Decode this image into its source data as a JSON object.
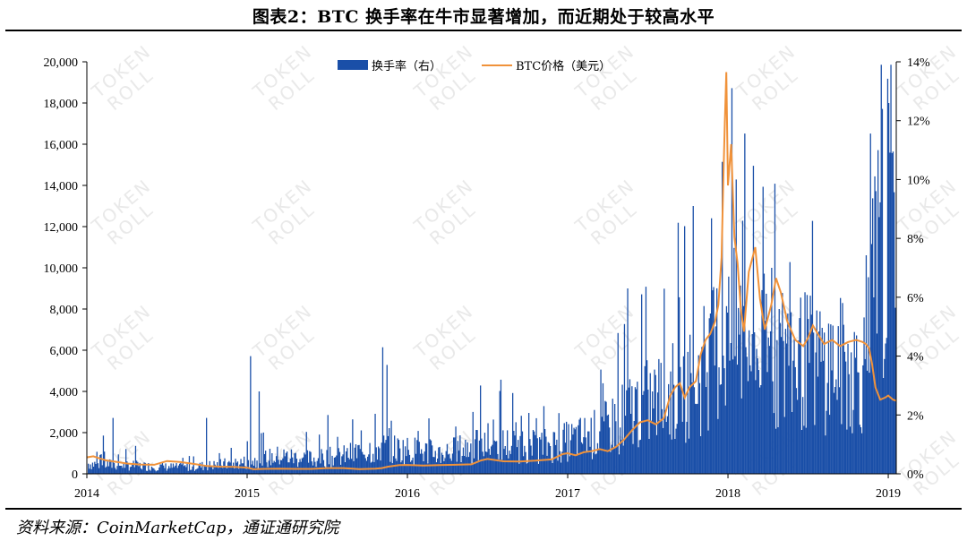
{
  "title": "图表2：BTC 换手率在牛市显著增加，而近期处于较高水平",
  "source": "资料来源：CoinMarketCap，通证通研究院",
  "watermark": {
    "line1": "TOKEN",
    "line2": "ROLL"
  },
  "chart_data": {
    "type": "bar+line",
    "legend": [
      {
        "key": "turnover",
        "label": "换手率（右）",
        "color": "#1a4fa8"
      },
      {
        "key": "price",
        "label": "BTC价格（美元）",
        "color": "#f0923a"
      }
    ],
    "legend_position": "top-center",
    "grid": false,
    "left_axis": {
      "range": [
        0,
        20000
      ],
      "ticks": [
        "0",
        "2,000",
        "4,000",
        "6,000",
        "8,000",
        "10,000",
        "12,000",
        "14,000",
        "16,000",
        "18,000",
        "20,000"
      ],
      "tick_values": [
        0,
        2000,
        4000,
        6000,
        8000,
        10000,
        12000,
        14000,
        16000,
        18000,
        20000
      ]
    },
    "right_axis": {
      "range": [
        0,
        14
      ],
      "ticks": [
        "0%",
        "2%",
        "4%",
        "6%",
        "8%",
        "10%",
        "12%",
        "14%"
      ],
      "tick_values": [
        0,
        2,
        4,
        6,
        8,
        10,
        12,
        14
      ]
    },
    "x_axis": {
      "range": [
        2014.0,
        2019.05
      ],
      "ticks": [
        "2014",
        "2015",
        "2016",
        "2017",
        "2018",
        "2019"
      ],
      "tick_values": [
        2014,
        2015,
        2016,
        2017,
        2018,
        2019
      ]
    },
    "price_series": {
      "name": "BTC价格（美元）",
      "x": [
        2014.0,
        2014.04,
        2014.08,
        2014.12,
        2014.17,
        2014.25,
        2014.33,
        2014.42,
        2014.5,
        2014.58,
        2014.67,
        2014.75,
        2014.83,
        2014.92,
        2015.0,
        2015.04,
        2015.1,
        2015.2,
        2015.3,
        2015.4,
        2015.5,
        2015.6,
        2015.7,
        2015.8,
        2015.84,
        2015.88,
        2015.95,
        2016.0,
        2016.1,
        2016.2,
        2016.3,
        2016.4,
        2016.46,
        2016.5,
        2016.6,
        2016.7,
        2016.8,
        2016.9,
        2016.97,
        2017.0,
        2017.05,
        2017.1,
        2017.15,
        2017.2,
        2017.25,
        2017.3,
        2017.35,
        2017.4,
        2017.45,
        2017.5,
        2017.55,
        2017.6,
        2017.64,
        2017.67,
        2017.7,
        2017.73,
        2017.76,
        2017.8,
        2017.83,
        2017.86,
        2017.89,
        2017.92,
        2017.94,
        2017.96,
        2017.97,
        2017.98,
        2017.99,
        2018.0,
        2018.02,
        2018.04,
        2018.06,
        2018.08,
        2018.1,
        2018.13,
        2018.17,
        2018.2,
        2018.23,
        2018.27,
        2018.3,
        2018.33,
        2018.37,
        2018.42,
        2018.47,
        2018.5,
        2018.53,
        2018.56,
        2018.6,
        2018.65,
        2018.7,
        2018.75,
        2018.8,
        2018.84,
        2018.86,
        2018.88,
        2018.9,
        2018.92,
        2018.95,
        2018.98,
        2019.0,
        2019.03,
        2019.05
      ],
      "y": [
        800,
        850,
        750,
        650,
        600,
        500,
        450,
        440,
        620,
        580,
        480,
        380,
        350,
        340,
        300,
        220,
        240,
        250,
        240,
        240,
        280,
        280,
        230,
        250,
        280,
        350,
        420,
        430,
        400,
        420,
        440,
        460,
        650,
        720,
        610,
        600,
        640,
        700,
        960,
        1000,
        900,
        1050,
        1100,
        1200,
        1100,
        1300,
        1650,
        2100,
        2500,
        2600,
        2400,
        2700,
        3800,
        4200,
        4400,
        3700,
        4200,
        4500,
        5800,
        6500,
        6800,
        7400,
        8200,
        10500,
        14000,
        17000,
        19500,
        14000,
        16000,
        11500,
        10200,
        8000,
        6900,
        9800,
        11000,
        8500,
        7000,
        8200,
        9500,
        8800,
        7400,
        6500,
        6200,
        6600,
        7200,
        6800,
        6300,
        6500,
        6200,
        6400,
        6500,
        6400,
        6300,
        6100,
        5300,
        4200,
        3600,
        3700,
        3800,
        3600,
        3550
      ]
    },
    "turnover_series": {
      "name": "换手率（右）",
      "x": [
        2014.0,
        2014.2,
        2014.4,
        2014.6,
        2014.8,
        2015.0,
        2015.2,
        2015.4,
        2015.6,
        2015.8,
        2016.0,
        2016.2,
        2016.4,
        2016.6,
        2016.8,
        2017.0,
        2017.2,
        2017.4,
        2017.6,
        2017.8,
        2017.9,
        2018.0,
        2018.1,
        2018.2,
        2018.3,
        2018.4,
        2018.5,
        2018.6,
        2018.7,
        2018.8,
        2018.86,
        2018.9,
        2018.95,
        2019.0,
        2019.05
      ],
      "y": [
        0.35,
        0.3,
        0.25,
        0.22,
        0.3,
        0.4,
        0.6,
        0.5,
        0.6,
        0.9,
        0.8,
        0.7,
        0.9,
        1.0,
        0.9,
        1.1,
        1.4,
        2.2,
        2.6,
        3.2,
        4.0,
        4.8,
        4.5,
        4.2,
        4.0,
        3.9,
        3.8,
        3.7,
        3.7,
        3.5,
        3.6,
        6.3,
        6.8,
        7.0,
        7.2
      ],
      "spikes": [
        {
          "x": 2014.06,
          "y": 0.75
        },
        {
          "x": 2014.1,
          "y": 1.3
        },
        {
          "x": 2014.16,
          "y": 1.9
        },
        {
          "x": 2014.3,
          "y": 0.95
        },
        {
          "x": 2014.74,
          "y": 1.9
        },
        {
          "x": 2015.02,
          "y": 4.0
        },
        {
          "x": 2015.07,
          "y": 2.8
        },
        {
          "x": 2015.5,
          "y": 2.0
        },
        {
          "x": 2015.84,
          "y": 4.3
        },
        {
          "x": 2015.87,
          "y": 3.7
        },
        {
          "x": 2016.45,
          "y": 3.0
        },
        {
          "x": 2016.58,
          "y": 3.2
        },
        {
          "x": 2016.85,
          "y": 2.3
        },
        {
          "x": 2017.2,
          "y": 2.8
        },
        {
          "x": 2017.37,
          "y": 6.3
        },
        {
          "x": 2017.46,
          "y": 6.1
        },
        {
          "x": 2017.69,
          "y": 6.0
        },
        {
          "x": 2017.78,
          "y": 9.1
        },
        {
          "x": 2017.96,
          "y": 10.6
        },
        {
          "x": 2018.02,
          "y": 12.3
        },
        {
          "x": 2018.05,
          "y": 10.0
        },
        {
          "x": 2018.09,
          "y": 8.6
        },
        {
          "x": 2018.27,
          "y": 7.0
        },
        {
          "x": 2018.53,
          "y": 4.8
        },
        {
          "x": 2018.93,
          "y": 11.0
        },
        {
          "x": 2018.96,
          "y": 12.4
        },
        {
          "x": 2019.02,
          "y": 10.9
        }
      ]
    }
  }
}
